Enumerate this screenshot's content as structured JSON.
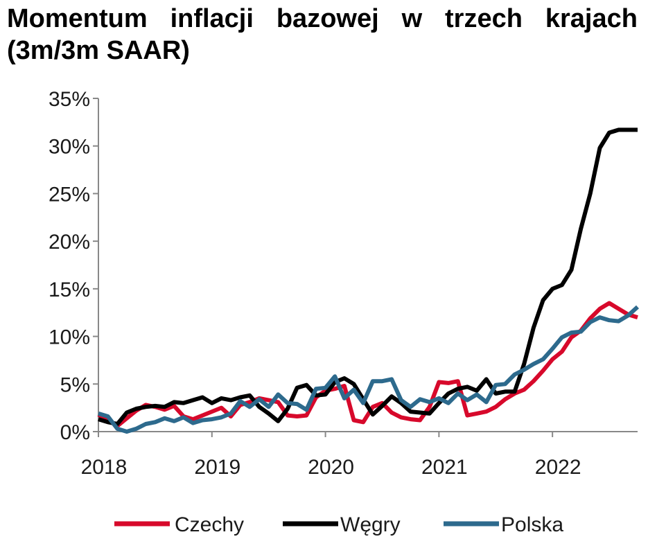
{
  "chart_data": {
    "type": "line",
    "title_line1": [
      "Momentum",
      "inflacji",
      "bazowej",
      "w",
      "trzech",
      "krajach"
    ],
    "title_line2": "(3m/3m SAAR)",
    "xlabel": "",
    "ylabel": "",
    "ylim": [
      0,
      35
    ],
    "xlim": [
      2018.0,
      2022.75
    ],
    "y_ticks": [
      0,
      5,
      10,
      15,
      20,
      25,
      30,
      35
    ],
    "y_tick_labels": [
      "0%",
      "5%",
      "10%",
      "15%",
      "20%",
      "25%",
      "30%",
      "35%"
    ],
    "x_ticks": [
      2018,
      2019,
      2020,
      2021,
      2022
    ],
    "x_tick_labels": [
      "2018",
      "2019",
      "2020",
      "2021",
      "2022"
    ],
    "legend_position": "bottom",
    "series": [
      {
        "name": "Czechy",
        "color": "#d7092b",
        "x": [
          2018.0,
          2018.083,
          2018.167,
          2018.25,
          2018.333,
          2018.417,
          2018.5,
          2018.583,
          2018.667,
          2018.75,
          2018.833,
          2018.917,
          2019.0,
          2019.083,
          2019.167,
          2019.25,
          2019.333,
          2019.417,
          2019.5,
          2019.583,
          2019.667,
          2019.75,
          2019.833,
          2019.917,
          2020.0,
          2020.083,
          2020.167,
          2020.25,
          2020.333,
          2020.417,
          2020.5,
          2020.583,
          2020.667,
          2020.75,
          2020.833,
          2020.917,
          2021.0,
          2021.083,
          2021.167,
          2021.25,
          2021.333,
          2021.417,
          2021.5,
          2021.583,
          2021.667,
          2021.75,
          2021.833,
          2021.917,
          2022.0,
          2022.083,
          2022.167,
          2022.25,
          2022.333,
          2022.417,
          2022.5,
          2022.583,
          2022.667,
          2022.75
        ],
        "y": [
          1.8,
          1.2,
          0.6,
          1.4,
          2.2,
          2.8,
          2.6,
          2.3,
          2.7,
          1.6,
          1.3,
          1.7,
          2.1,
          2.5,
          1.6,
          2.8,
          3.1,
          3.5,
          3.3,
          3.1,
          1.7,
          1.6,
          1.7,
          3.6,
          4.3,
          4.5,
          4.8,
          1.2,
          1.0,
          2.6,
          3.0,
          2.0,
          1.5,
          1.3,
          1.2,
          2.6,
          5.2,
          5.1,
          5.3,
          1.7,
          1.9,
          2.1,
          2.6,
          3.4,
          4.0,
          4.4,
          5.3,
          6.4,
          7.6,
          8.4,
          9.9,
          10.6,
          11.9,
          12.9,
          13.5,
          12.9,
          12.3,
          12.0
        ]
      },
      {
        "name": "Węgry",
        "color": "#000000",
        "x": [
          2018.0,
          2018.083,
          2018.167,
          2018.25,
          2018.333,
          2018.417,
          2018.5,
          2018.583,
          2018.667,
          2018.75,
          2018.833,
          2018.917,
          2019.0,
          2019.083,
          2019.167,
          2019.25,
          2019.333,
          2019.417,
          2019.5,
          2019.583,
          2019.667,
          2019.75,
          2019.833,
          2019.917,
          2020.0,
          2020.083,
          2020.167,
          2020.25,
          2020.333,
          2020.417,
          2020.5,
          2020.583,
          2020.667,
          2020.75,
          2020.833,
          2020.917,
          2021.0,
          2021.083,
          2021.167,
          2021.25,
          2021.333,
          2021.417,
          2021.5,
          2021.583,
          2021.667,
          2021.75,
          2021.833,
          2021.917,
          2022.0,
          2022.083,
          2022.167,
          2022.25,
          2022.333,
          2022.417,
          2022.5,
          2022.583,
          2022.667,
          2022.75
        ],
        "y": [
          1.3,
          1.0,
          0.8,
          2.0,
          2.4,
          2.6,
          2.7,
          2.6,
          3.1,
          3.0,
          3.3,
          3.6,
          3.0,
          3.5,
          3.3,
          3.6,
          3.8,
          2.6,
          1.9,
          1.1,
          2.4,
          4.6,
          4.9,
          3.8,
          3.9,
          5.2,
          5.6,
          5.0,
          3.4,
          1.8,
          2.7,
          3.7,
          3.0,
          2.1,
          2.0,
          1.9,
          3.0,
          4.0,
          4.5,
          4.7,
          4.3,
          5.5,
          4.0,
          4.2,
          4.2,
          7.1,
          10.9,
          13.8,
          15.0,
          15.4,
          17.0,
          21.3,
          25.0,
          29.8,
          31.4,
          31.7,
          31.7,
          31.7
        ]
      },
      {
        "name": "Polska",
        "color": "#2d6a8d",
        "x": [
          2018.0,
          2018.083,
          2018.167,
          2018.25,
          2018.333,
          2018.417,
          2018.5,
          2018.583,
          2018.667,
          2018.75,
          2018.833,
          2018.917,
          2019.0,
          2019.083,
          2019.167,
          2019.25,
          2019.333,
          2019.417,
          2019.5,
          2019.583,
          2019.667,
          2019.75,
          2019.833,
          2019.917,
          2020.0,
          2020.083,
          2020.167,
          2020.25,
          2020.333,
          2020.417,
          2020.5,
          2020.583,
          2020.667,
          2020.75,
          2020.833,
          2020.917,
          2021.0,
          2021.083,
          2021.167,
          2021.25,
          2021.333,
          2021.417,
          2021.5,
          2021.583,
          2021.667,
          2021.75,
          2021.833,
          2021.917,
          2022.0,
          2022.083,
          2022.167,
          2022.25,
          2022.333,
          2022.417,
          2022.5,
          2022.583,
          2022.667,
          2022.75
        ],
        "y": [
          1.9,
          1.6,
          0.3,
          0.0,
          0.3,
          0.8,
          1.0,
          1.4,
          1.1,
          1.5,
          0.9,
          1.2,
          1.3,
          1.5,
          1.9,
          3.2,
          2.6,
          3.4,
          2.6,
          3.9,
          3.0,
          2.9,
          2.3,
          4.5,
          4.6,
          5.8,
          3.5,
          4.4,
          3.0,
          5.3,
          5.3,
          5.5,
          3.3,
          2.6,
          3.4,
          3.1,
          3.5,
          3.0,
          4.0,
          3.3,
          3.9,
          3.1,
          4.9,
          5.0,
          6.0,
          6.5,
          7.1,
          7.6,
          8.7,
          9.9,
          10.4,
          10.5,
          11.5,
          12.0,
          11.7,
          11.6,
          12.2,
          13.1
        ]
      }
    ]
  }
}
